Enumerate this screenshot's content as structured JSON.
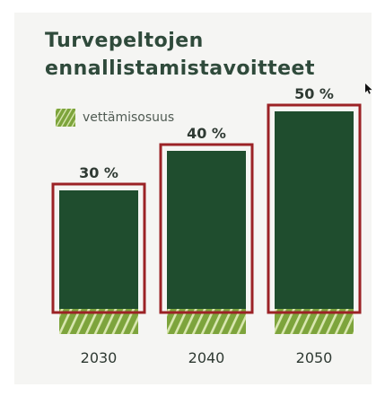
{
  "title_lines": [
    "Turvepeltojen",
    "ennallistamistavoitteet"
  ],
  "legend": {
    "label": "vettämisosuus"
  },
  "colors": {
    "title": "#2f4a3b",
    "bar_fill": "#1f4d2e",
    "hatch_fill": "#7da43c",
    "hatch_stripe": "#d9e7b0",
    "frame": "#9b2226",
    "text": "#2f3a33"
  },
  "chart_data": {
    "type": "bar",
    "title": "Turvepeltojen ennallistamistavoitteet",
    "categories": [
      "2030",
      "2040",
      "2050"
    ],
    "series": [
      {
        "name": "vettämisosuus",
        "values": [
          30,
          40,
          50
        ]
      }
    ],
    "data_labels": [
      "30 %",
      "40 %",
      "50 %"
    ],
    "ylim": [
      0,
      100
    ],
    "legend_position": "top-left",
    "grid": false
  }
}
